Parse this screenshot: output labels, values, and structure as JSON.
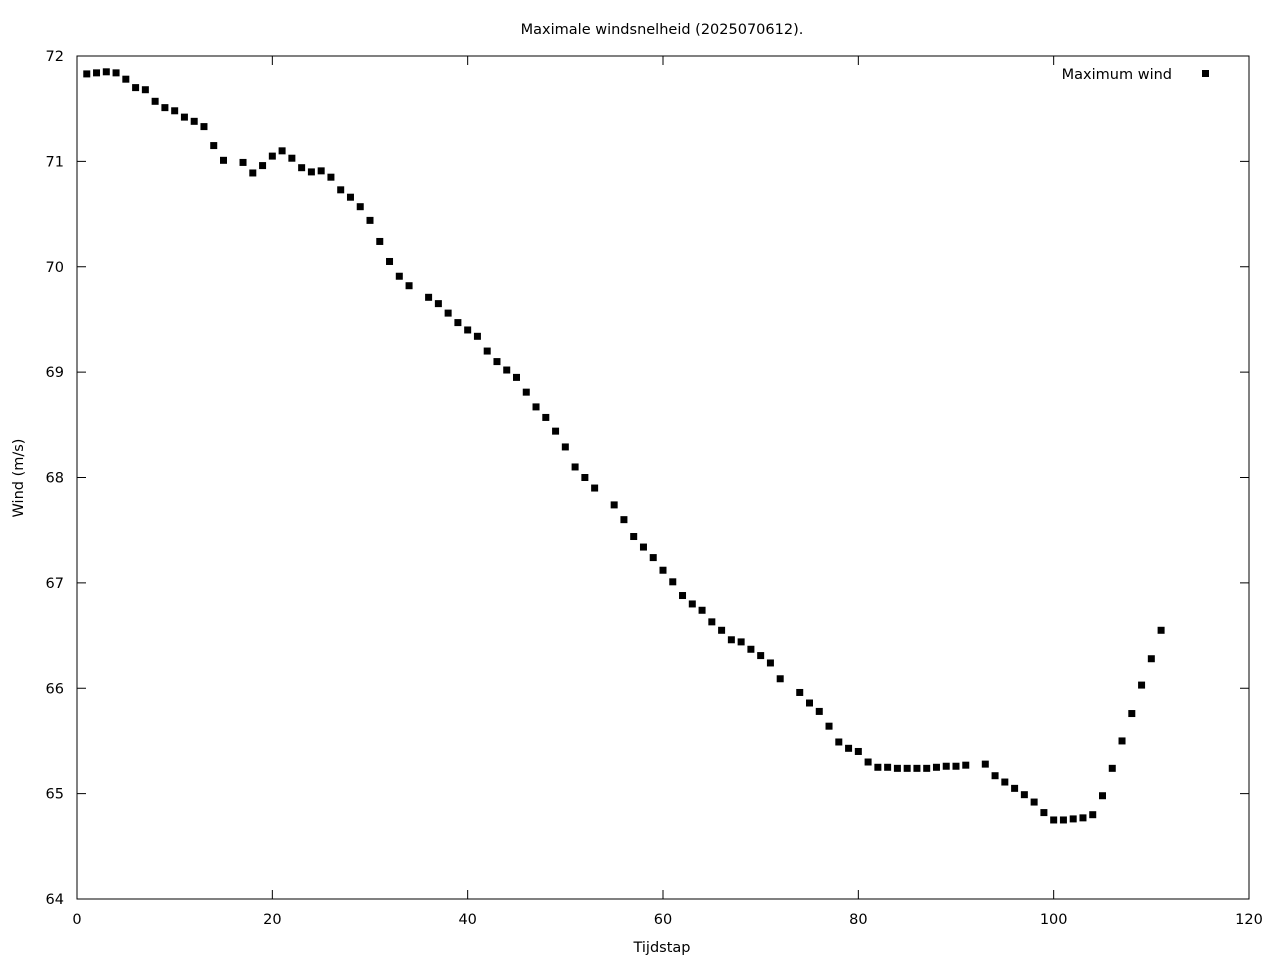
{
  "chart_data": {
    "type": "scatter",
    "title": "Maximale windsnelheid (2025070612).",
    "xlabel": "Tijdstap",
    "ylabel": "Wind (m/s)",
    "xlim": [
      0,
      120
    ],
    "ylim": [
      64,
      72
    ],
    "xticks": [
      0,
      20,
      40,
      60,
      80,
      100,
      120
    ],
    "yticks": [
      64,
      65,
      66,
      67,
      68,
      69,
      70,
      71,
      72
    ],
    "grid": false,
    "legend": "top-right",
    "marker": "square",
    "color": "#000000",
    "series": [
      {
        "name": "Maximum wind",
        "x": [
          1,
          2,
          3,
          4,
          5,
          6,
          7,
          8,
          9,
          10,
          11,
          12,
          13,
          14,
          15,
          17,
          18,
          19,
          20,
          21,
          22,
          23,
          24,
          25,
          26,
          27,
          28,
          29,
          30,
          31,
          32,
          33,
          34,
          36,
          37,
          38,
          39,
          40,
          41,
          42,
          43,
          44,
          45,
          46,
          47,
          48,
          49,
          50,
          51,
          52,
          53,
          55,
          56,
          57,
          58,
          59,
          60,
          61,
          62,
          63,
          64,
          65,
          66,
          67,
          68,
          69,
          70,
          71,
          72,
          74,
          75,
          76,
          77,
          78,
          79,
          80,
          81,
          82,
          83,
          84,
          85,
          86,
          87,
          88,
          89,
          90,
          91,
          93,
          94,
          95,
          96,
          97,
          98,
          99,
          100,
          101,
          102,
          103,
          104,
          105,
          106,
          107,
          108,
          109,
          110,
          111
        ],
        "y": [
          71.83,
          71.84,
          71.85,
          71.84,
          71.78,
          71.7,
          71.68,
          71.57,
          71.51,
          71.48,
          71.42,
          71.38,
          71.33,
          71.15,
          71.01,
          70.99,
          70.89,
          70.96,
          71.05,
          71.1,
          71.03,
          70.94,
          70.9,
          70.91,
          70.85,
          70.73,
          70.66,
          70.57,
          70.44,
          70.24,
          70.05,
          69.91,
          69.82,
          69.71,
          69.65,
          69.56,
          69.47,
          69.4,
          69.34,
          69.2,
          69.1,
          69.02,
          68.95,
          68.81,
          68.67,
          68.57,
          68.44,
          68.29,
          68.1,
          68.0,
          67.9,
          67.74,
          67.6,
          67.44,
          67.34,
          67.24,
          67.12,
          67.01,
          66.88,
          66.8,
          66.74,
          66.63,
          66.55,
          66.46,
          66.44,
          66.37,
          66.31,
          66.24,
          66.09,
          65.96,
          65.86,
          65.78,
          65.64,
          65.49,
          65.43,
          65.4,
          65.3,
          65.25,
          65.25,
          65.24,
          65.24,
          65.24,
          65.24,
          65.25,
          65.26,
          65.26,
          65.27,
          65.28,
          65.17,
          65.11,
          65.05,
          64.99,
          64.92,
          64.82,
          64.75,
          64.75,
          64.76,
          64.77,
          64.8,
          64.98,
          65.24,
          65.5,
          65.76,
          66.03,
          66.28,
          66.55
        ]
      }
    ]
  }
}
